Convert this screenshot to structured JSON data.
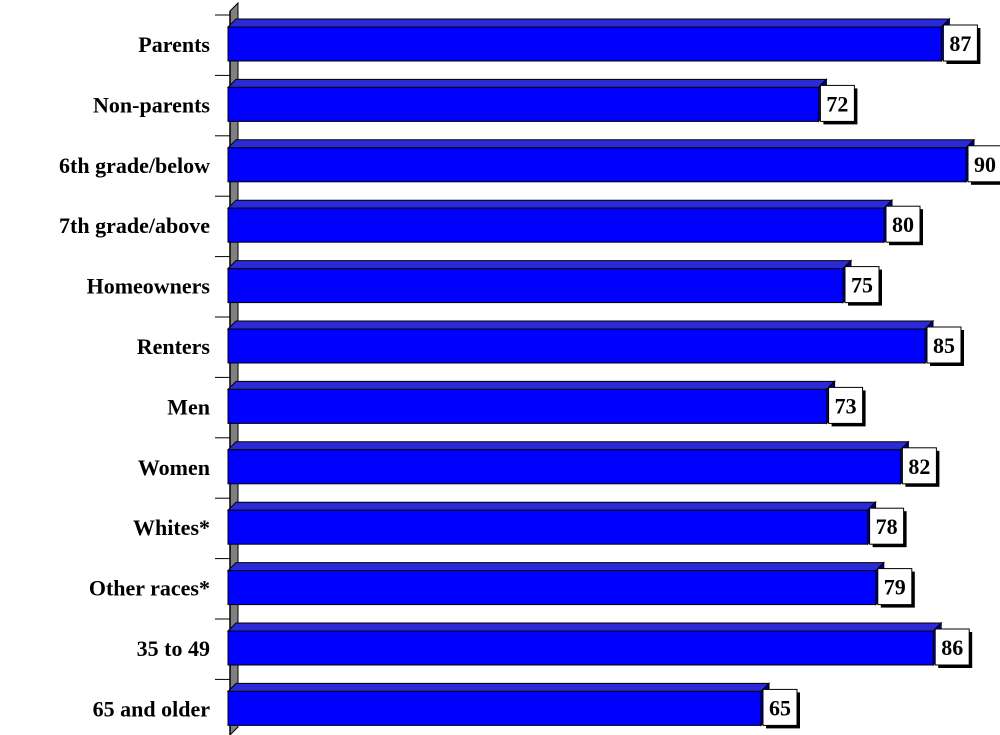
{
  "chart_data": {
    "type": "bar",
    "orientation": "horizontal",
    "categories": [
      "Parents",
      "Non-parents",
      "6th grade/below",
      "7th grade/above",
      "Homeowners",
      "Renters",
      "Men",
      "Women",
      "Whites*",
      "Other races*",
      "35 to 49",
      "65 and older"
    ],
    "values": [
      87,
      72,
      90,
      80,
      75,
      85,
      73,
      82,
      78,
      79,
      86,
      65
    ],
    "title": "",
    "xlabel": "",
    "ylabel": "",
    "xlim": [
      0,
      90
    ],
    "grid": false,
    "data_labels": true,
    "colors": {
      "bar": "#0000ff",
      "bar_top": "#2a2ad6",
      "bar_side": "#000099",
      "axis_wall": "#808080",
      "label_box": "#ffffff"
    }
  }
}
